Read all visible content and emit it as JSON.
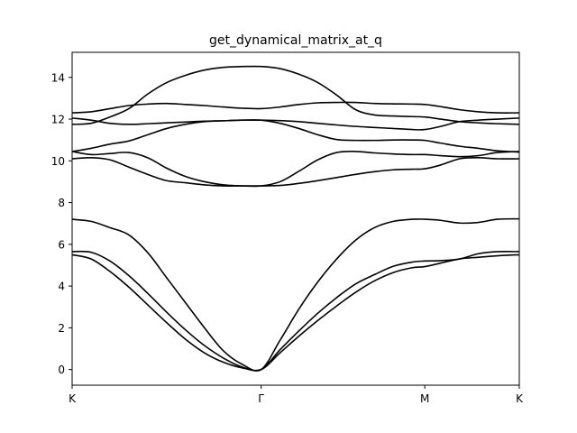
{
  "chart_data": {
    "type": "line",
    "title": "get_dynamical_matrix_at_q",
    "xlabel": "",
    "ylabel": "",
    "x_ticks": [
      {
        "label": "K",
        "pos": 0.0
      },
      {
        "label": "Γ",
        "pos": 1.0
      },
      {
        "label": "M",
        "pos": 1.866
      },
      {
        "label": "K",
        "pos": 2.366
      }
    ],
    "xlim": [
      0.0,
      2.366
    ],
    "ylim": [
      -0.75,
      15.2
    ],
    "y_ticks": [
      0,
      2,
      4,
      6,
      8,
      10,
      12,
      14
    ],
    "grid": false,
    "line_color": "#000000",
    "series": [
      {
        "x": [
          0,
          0.1,
          0.2,
          0.3,
          0.4,
          0.5,
          0.6,
          0.7,
          0.8,
          0.9,
          1.0,
          1.1,
          1.2,
          1.3,
          1.4,
          1.5,
          1.6,
          1.7,
          1.8,
          1.866,
          1.95,
          2.05,
          2.15,
          2.25,
          2.366
        ],
        "values": [
          5.5,
          5.3,
          4.7,
          3.95,
          3.1,
          2.25,
          1.45,
          0.8,
          0.35,
          0.08,
          0.0,
          0.8,
          1.6,
          2.35,
          3.05,
          3.7,
          4.25,
          4.65,
          4.88,
          4.93,
          5.1,
          5.3,
          5.38,
          5.45,
          5.5
        ]
      },
      {
        "x": [
          0,
          0.1,
          0.2,
          0.3,
          0.4,
          0.5,
          0.6,
          0.7,
          0.8,
          0.9,
          1.0,
          1.1,
          1.2,
          1.3,
          1.4,
          1.5,
          1.6,
          1.7,
          1.8,
          1.866,
          1.95,
          2.05,
          2.15,
          2.25,
          2.366
        ],
        "values": [
          5.65,
          5.62,
          5.2,
          4.5,
          3.65,
          2.75,
          1.9,
          1.15,
          0.55,
          0.12,
          0.0,
          0.95,
          1.85,
          2.7,
          3.45,
          4.1,
          4.55,
          4.95,
          5.15,
          5.2,
          5.22,
          5.3,
          5.55,
          5.65,
          5.65
        ]
      },
      {
        "x": [
          0,
          0.1,
          0.2,
          0.3,
          0.4,
          0.5,
          0.6,
          0.7,
          0.8,
          0.9,
          1.0,
          1.1,
          1.2,
          1.3,
          1.4,
          1.5,
          1.6,
          1.7,
          1.8,
          1.866,
          1.95,
          2.05,
          2.15,
          2.25,
          2.366
        ],
        "values": [
          7.2,
          7.1,
          6.8,
          6.45,
          5.6,
          4.4,
          3.2,
          2.0,
          0.9,
          0.25,
          0.0,
          1.4,
          2.9,
          4.2,
          5.3,
          6.2,
          6.8,
          7.1,
          7.2,
          7.2,
          7.15,
          7.02,
          7.05,
          7.2,
          7.22
        ]
      },
      {
        "x": [
          0,
          0.1,
          0.2,
          0.3,
          0.4,
          0.5,
          0.6,
          0.7,
          0.8,
          0.9,
          1.0,
          1.1,
          1.2,
          1.3,
          1.4,
          1.5,
          1.6,
          1.7,
          1.8,
          1.866,
          1.95,
          2.05,
          2.15,
          2.25,
          2.366
        ],
        "values": [
          10.1,
          10.15,
          10.05,
          9.7,
          9.35,
          9.05,
          8.95,
          8.85,
          8.8,
          8.8,
          8.8,
          8.82,
          8.92,
          9.05,
          9.2,
          9.35,
          9.48,
          9.57,
          9.6,
          9.62,
          9.8,
          10.1,
          10.15,
          10.1,
          10.1
        ]
      },
      {
        "x": [
          0,
          0.1,
          0.2,
          0.3,
          0.4,
          0.5,
          0.6,
          0.7,
          0.8,
          0.9,
          1.0,
          1.1,
          1.2,
          1.3,
          1.4,
          1.5,
          1.6,
          1.7,
          1.8,
          1.866,
          1.95,
          2.05,
          2.15,
          2.25,
          2.366
        ],
        "values": [
          10.45,
          10.3,
          10.35,
          10.4,
          10.15,
          9.65,
          9.25,
          9.0,
          8.85,
          8.8,
          8.8,
          9.0,
          9.5,
          10.05,
          10.4,
          10.45,
          10.38,
          10.33,
          10.3,
          10.3,
          10.25,
          10.2,
          10.25,
          10.4,
          10.45
        ]
      },
      {
        "x": [
          0,
          0.1,
          0.2,
          0.3,
          0.4,
          0.5,
          0.6,
          0.7,
          0.8,
          0.9,
          1.0,
          1.1,
          1.2,
          1.3,
          1.4,
          1.5,
          1.6,
          1.7,
          1.8,
          1.866,
          1.95,
          2.05,
          2.15,
          2.25,
          2.366
        ],
        "values": [
          10.45,
          10.6,
          10.8,
          10.95,
          11.25,
          11.55,
          11.75,
          11.88,
          11.92,
          11.95,
          11.95,
          11.8,
          11.55,
          11.25,
          11.02,
          10.98,
          10.98,
          11.0,
          11.0,
          10.98,
          10.85,
          10.7,
          10.6,
          10.48,
          10.42
        ]
      },
      {
        "x": [
          0,
          0.1,
          0.2,
          0.3,
          0.4,
          0.5,
          0.6,
          0.7,
          0.8,
          0.9,
          1.0,
          1.1,
          1.2,
          1.3,
          1.4,
          1.5,
          1.6,
          1.7,
          1.8,
          1.866,
          1.95,
          2.05,
          2.15,
          2.25,
          2.366
        ],
        "values": [
          12.05,
          11.95,
          11.8,
          11.75,
          11.78,
          11.82,
          11.86,
          11.9,
          11.92,
          11.95,
          11.95,
          11.93,
          11.88,
          11.8,
          11.72,
          11.65,
          11.6,
          11.55,
          11.5,
          11.5,
          11.65,
          11.88,
          11.95,
          12.0,
          12.05
        ]
      },
      {
        "x": [
          0,
          0.1,
          0.2,
          0.3,
          0.4,
          0.5,
          0.6,
          0.7,
          0.8,
          0.9,
          1.0,
          1.1,
          1.2,
          1.3,
          1.4,
          1.5,
          1.6,
          1.7,
          1.8,
          1.866,
          1.95,
          2.05,
          2.15,
          2.25,
          2.366
        ],
        "values": [
          11.75,
          11.8,
          12.1,
          12.5,
          13.2,
          13.75,
          14.1,
          14.35,
          14.48,
          14.52,
          14.52,
          14.42,
          14.15,
          13.75,
          13.15,
          12.45,
          12.2,
          12.15,
          12.12,
          12.1,
          12.0,
          11.88,
          11.82,
          11.78,
          11.75
        ]
      },
      {
        "x": [
          0,
          0.1,
          0.2,
          0.3,
          0.4,
          0.5,
          0.6,
          0.7,
          0.8,
          0.9,
          1.0,
          1.1,
          1.2,
          1.3,
          1.4,
          1.5,
          1.6,
          1.7,
          1.8,
          1.866,
          1.95,
          2.05,
          2.15,
          2.25,
          2.366
        ],
        "values": [
          12.3,
          12.35,
          12.5,
          12.65,
          12.72,
          12.75,
          12.7,
          12.65,
          12.58,
          12.52,
          12.5,
          12.58,
          12.7,
          12.78,
          12.8,
          12.8,
          12.75,
          12.73,
          12.72,
          12.7,
          12.6,
          12.45,
          12.35,
          12.3,
          12.3
        ]
      }
    ]
  }
}
